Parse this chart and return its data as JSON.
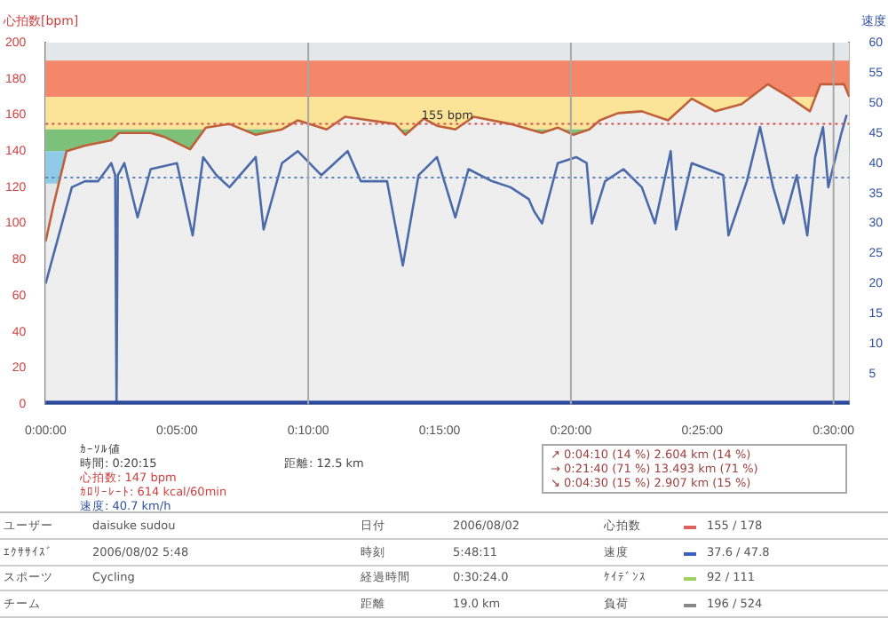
{
  "chart_data": {
    "type": "line",
    "ylabel": "心拍数[bpm]",
    "y2label": "速度",
    "xlim": [
      0,
      30.6
    ],
    "xticks": [
      {
        "value": 0,
        "label": "0:00:00"
      },
      {
        "value": 5,
        "label": "0:05:00"
      },
      {
        "value": 10,
        "label": "0:10:00"
      },
      {
        "value": 15,
        "label": "0:15:00"
      },
      {
        "value": 20,
        "label": "0:20:00"
      },
      {
        "value": 25,
        "label": "0:25:00"
      },
      {
        "value": 30,
        "label": "0:30:00"
      }
    ],
    "ylim": [
      0,
      200
    ],
    "yticks": [
      0,
      20,
      40,
      60,
      80,
      100,
      120,
      140,
      160,
      180,
      200
    ],
    "y2lim": [
      0,
      60
    ],
    "y2ticks": [
      5,
      10,
      15,
      20,
      25,
      30,
      35,
      40,
      45,
      50,
      55,
      60
    ],
    "series": [
      {
        "type": "area",
        "color": "#c0603a",
        "x": [
          0,
          0.3,
          0.8,
          1.5,
          2.5,
          2.8,
          4,
          4.5,
          5.5,
          6.1,
          7,
          8,
          9,
          9.6,
          10.7,
          11.4,
          13.3,
          13.7,
          14.4,
          14.9,
          15.6,
          16.3,
          17.7,
          18.9,
          19.5,
          20.1,
          20.7,
          21.1,
          21.8,
          22.7,
          23.7,
          24.6,
          25.5,
          26.5,
          27.5,
          28.3,
          29.1,
          29.5,
          30.4,
          30.6
        ],
        "values": [
          90,
          110,
          140,
          143,
          146,
          150,
          150,
          148,
          141,
          153,
          155,
          149,
          152,
          157,
          152,
          159,
          155,
          149,
          158,
          154,
          152,
          159,
          155,
          150,
          153,
          149,
          152,
          157,
          161,
          162,
          157,
          169,
          162,
          166,
          177,
          170,
          162,
          177,
          177,
          170
        ]
      },
      {
        "type": "line",
        "axis": "y2",
        "color": "#4a6aaa",
        "x": [
          0,
          0.5,
          1,
          1.5,
          2,
          2.5,
          2.65,
          2.7,
          2.75,
          3,
          3.5,
          4,
          5,
          5.6,
          6,
          6.5,
          7,
          8,
          8.3,
          9,
          9.6,
          10.5,
          11,
          11.5,
          12,
          13,
          13.6,
          14.2,
          14.9,
          15.6,
          16.1,
          17,
          17.7,
          18.4,
          18.6,
          18.9,
          19.5,
          20.2,
          20.6,
          20.8,
          21.3,
          22,
          22.7,
          23.2,
          23.8,
          24,
          24.6,
          25.8,
          26,
          26.7,
          27.2,
          27.7,
          28.1,
          28.6,
          29,
          29.3,
          29.6,
          29.8,
          30.3,
          30.5
        ],
        "values": [
          20,
          28,
          36,
          37,
          37,
          40,
          38,
          0,
          38,
          40,
          31,
          39,
          40,
          28,
          41,
          38,
          36,
          41,
          29,
          40,
          42,
          38,
          40,
          42,
          37,
          37,
          23,
          38,
          41,
          31,
          39,
          37,
          36,
          34,
          32,
          30,
          40,
          41,
          40,
          30,
          37,
          39,
          36,
          30,
          42,
          29,
          40,
          38,
          28,
          37,
          46,
          36,
          30,
          38,
          28,
          41,
          46,
          36,
          45,
          48
        ]
      }
    ],
    "bands": [
      {
        "axis": "y",
        "from": 170,
        "to": 190,
        "color": "#f4866a"
      },
      {
        "axis": "y",
        "from": 152,
        "to": 170,
        "color": "#fbe397"
      },
      {
        "axis": "y",
        "from": 140,
        "to": 152,
        "color": "#7cc07a"
      },
      {
        "axis": "y",
        "from": 122,
        "to": 140,
        "color": "#8fcbe6"
      },
      {
        "axis": "y",
        "from": 0,
        "to": 2,
        "color": "#2a4aa0"
      }
    ],
    "ref_lines": [
      {
        "axis": "y",
        "value": 155,
        "label": "155 bpm",
        "color": "#d05050",
        "line_style": "dotted"
      },
      {
        "axis": "y2",
        "value": 37.6,
        "color": "#6080c0",
        "line_style": "dotted"
      },
      {
        "axis": "x",
        "value": 10,
        "color": "#a8a8a8"
      },
      {
        "axis": "x",
        "value": 20,
        "color": "#a8a8a8"
      },
      {
        "axis": "x",
        "value": 30,
        "color": "#a8a8a8"
      }
    ],
    "legend": false,
    "marker": "none",
    "line_style": "solid",
    "grid": false,
    "annotations": [
      "ｶｰｿﾙ値",
      "時間: 0:20:15",
      "心拍数: 147 bpm",
      "ｶﾛﾘｰﾚｰﾄ: 614 kcal/60min",
      "速度: 40.7 km/h",
      "距離: 12.5 km",
      "↗ 0:04:10 (14 %) 2.604 km (14 %)",
      "→ 0:21:40 (71 %) 13.493 km (71 %)",
      "↘ 0:04:30 (15 %) 2.907 km (15 %)",
      "ユーザー",
      "daisuke sudou",
      "日付",
      "2006/08/02",
      "心拍数",
      "155 / 178",
      "ｴｸｻｻｲｽﾞ",
      "2006/08/02 5:48",
      "時刻",
      "5:48:11",
      "速度",
      "37.6 / 47.8",
      "スポーツ",
      "Cycling",
      "経過時間",
      "0:30:24.0",
      "ｹｲﾃﾞﾝｽ",
      "92 / 111",
      "チーム",
      "距離",
      "19.0 km",
      "負荷",
      "196 / 524"
    ]
  }
}
